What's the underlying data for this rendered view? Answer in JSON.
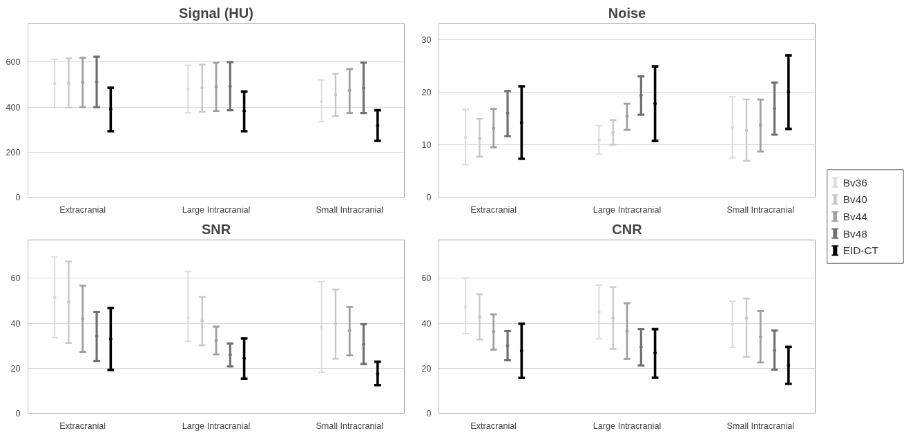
{
  "chart_data": [
    {
      "type": "scatter",
      "title": "Signal (HU)",
      "categories": [
        "Extracranial",
        "Large Intracranial",
        "Small Intracranial"
      ],
      "ylim": [
        0,
        770
      ],
      "yticks": [
        0,
        200,
        400,
        600
      ],
      "grid": "y",
      "marker": "circle",
      "legend": false,
      "series": [
        {
          "color": "#dcdcdc",
          "values": [
            505,
            480,
            425
          ],
          "errors": [
            [
              398,
              612
            ],
            [
              374,
              586
            ],
            [
              336,
              521
            ]
          ]
        },
        {
          "color": "#c8c8c8",
          "values": [
            505,
            487,
            455
          ],
          "errors": [
            [
              398,
              617
            ],
            [
              379,
              589
            ],
            [
              360,
              548
            ]
          ]
        },
        {
          "color": "#a0a0a0",
          "values": [
            510,
            490,
            474
          ],
          "errors": [
            [
              400,
              619
            ],
            [
              383,
              598
            ],
            [
              374,
              569
            ]
          ]
        },
        {
          "color": "#707070",
          "values": [
            512,
            493,
            485
          ],
          "errors": [
            [
              400,
              624
            ],
            [
              386,
              600
            ],
            [
              374,
              598
            ]
          ]
        },
        {
          "color": "#000000",
          "values": [
            390,
            383,
            318
          ],
          "errors": [
            [
              293,
              486
            ],
            [
              293,
              469
            ],
            [
              250,
              386
            ]
          ]
        }
      ]
    },
    {
      "type": "scatter",
      "title": "Noise",
      "categories": [
        "Extracranial",
        "Large Intracranial",
        "Small Intracranial"
      ],
      "ylim": [
        0,
        33
      ],
      "yticks": [
        0,
        10,
        20,
        30
      ],
      "grid": "y",
      "marker": "circle",
      "legend": "right",
      "series": [
        {
          "name": "Bv36",
          "color": "#dcdcdc",
          "values": [
            11.4,
            10.9,
            13.3
          ],
          "errors": [
            [
              6.2,
              16.7
            ],
            [
              8.2,
              13.6
            ],
            [
              7.5,
              19.1
            ]
          ]
        },
        {
          "name": "Bv40",
          "color": "#c8c8c8",
          "values": [
            11.2,
            12.3,
            12.7
          ],
          "errors": [
            [
              7.7,
              14.9
            ],
            [
              10.0,
              14.7
            ],
            [
              6.9,
              18.6
            ]
          ]
        },
        {
          "name": "Bv44",
          "color": "#a0a0a0",
          "values": [
            13.1,
            15.4,
            13.7
          ],
          "errors": [
            [
              9.5,
              16.8
            ],
            [
              12.8,
              17.8
            ],
            [
              8.7,
              18.6
            ]
          ]
        },
        {
          "name": "Bv48",
          "color": "#707070",
          "values": [
            16.0,
            19.4,
            16.9
          ],
          "errors": [
            [
              11.6,
              20.2
            ],
            [
              15.7,
              23.0
            ],
            [
              11.9,
              21.8
            ]
          ]
        },
        {
          "name": "EID-CT",
          "color": "#000000",
          "values": [
            14.2,
            17.8,
            20.0
          ],
          "errors": [
            [
              7.3,
              21.1
            ],
            [
              10.7,
              24.9
            ],
            [
              13.0,
              27.0
            ]
          ]
        }
      ]
    },
    {
      "type": "scatter",
      "title": "SNR",
      "categories": [
        "Extracranial",
        "Large Intracranial",
        "Small Intracranial"
      ],
      "ylim": [
        0,
        77
      ],
      "yticks": [
        0,
        20,
        40,
        60
      ],
      "grid": "y",
      "marker": "circle",
      "legend": false,
      "series": [
        {
          "color": "#dcdcdc",
          "values": [
            51.5,
            42.3,
            38.3
          ],
          "errors": [
            [
              33.7,
              69.4
            ],
            [
              31.9,
              63.0
            ],
            [
              18.2,
              58.5
            ]
          ]
        },
        {
          "color": "#c8c8c8",
          "values": [
            49.4,
            41.1,
            39.9
          ],
          "errors": [
            [
              31.2,
              67.4
            ],
            [
              30.2,
              51.7
            ],
            [
              24.2,
              55.0
            ]
          ]
        },
        {
          "color": "#a0a0a0",
          "values": [
            42.0,
            32.4,
            36.7
          ],
          "errors": [
            [
              27.3,
              56.7
            ],
            [
              26.2,
              38.5
            ],
            [
              25.7,
              47.3
            ]
          ]
        },
        {
          "color": "#707070",
          "values": [
            34.3,
            26.0,
            30.7
          ],
          "errors": [
            [
              23.3,
              45.1
            ],
            [
              20.8,
              31.0
            ],
            [
              21.9,
              39.6
            ]
          ]
        },
        {
          "color": "#000000",
          "values": [
            33.1,
            24.4,
            17.5
          ],
          "errors": [
            [
              19.3,
              46.8
            ],
            [
              15.4,
              33.3
            ],
            [
              12.5,
              22.9
            ]
          ]
        }
      ]
    },
    {
      "type": "scatter",
      "title": "CNR",
      "categories": [
        "Extracranial",
        "Large Intracranial",
        "Small Intracranial"
      ],
      "ylim": [
        0,
        77
      ],
      "yticks": [
        0,
        20,
        40,
        60
      ],
      "grid": "y",
      "marker": "circle",
      "legend": false,
      "series": [
        {
          "color": "#dcdcdc",
          "values": [
            47.3,
            45.0,
            39.6
          ],
          "errors": [
            [
              35.4,
              60.1
            ],
            [
              33.1,
              56.9
            ],
            [
              29.4,
              49.8
            ]
          ]
        },
        {
          "color": "#c8c8c8",
          "values": [
            42.9,
            42.3,
            42.3
          ],
          "errors": [
            [
              32.7,
              52.9
            ],
            [
              28.6,
              56.1
            ],
            [
              25.1,
              51.0
            ]
          ]
        },
        {
          "color": "#a0a0a0",
          "values": [
            36.3,
            36.5,
            33.9
          ],
          "errors": [
            [
              28.3,
              44.0
            ],
            [
              24.2,
              48.9
            ],
            [
              22.6,
              45.4
            ]
          ]
        },
        {
          "color": "#707070",
          "values": [
            30.0,
            29.4,
            28.0
          ],
          "errors": [
            [
              23.6,
              36.5
            ],
            [
              21.3,
              37.4
            ],
            [
              19.4,
              36.8
            ]
          ]
        },
        {
          "color": "#000000",
          "values": [
            27.7,
            26.8,
            21.3
          ],
          "errors": [
            [
              15.7,
              39.8
            ],
            [
              15.8,
              37.4
            ],
            [
              13.1,
              29.5
            ]
          ]
        }
      ]
    }
  ]
}
